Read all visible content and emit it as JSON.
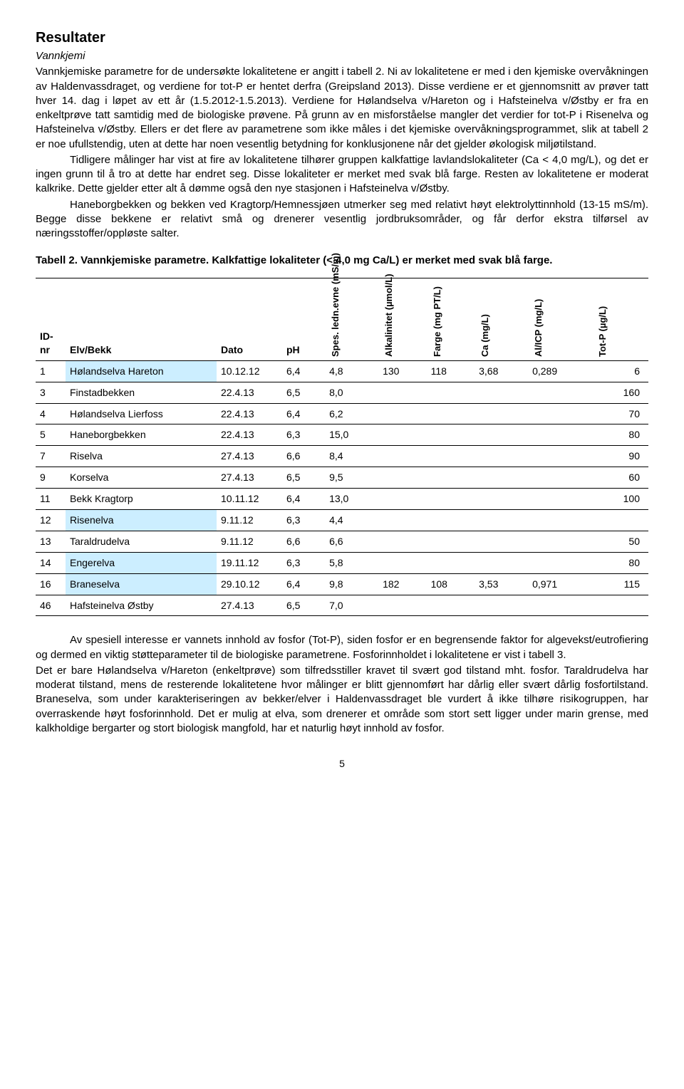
{
  "title": "Resultater",
  "subhead": "Vannkjemi",
  "para1": "Vannkjemiske parametre for de undersøkte lokalitetene er angitt i tabell 2. Ni av lokalitetene er med i den kjemiske overvåkningen av Haldenvassdraget, og verdiene for tot-P er hentet derfra (Greipsland 2013). Disse verdiene er et gjennomsnitt av prøver tatt hver 14. dag i løpet av ett år (1.5.2012-1.5.2013). Verdiene for Hølandselva v/Hareton og i Hafsteinelva v/Østby er fra en enkeltprøve tatt samtidig med de biologiske prøvene. På grunn av en misforståelse mangler det verdier for tot-P i Risenelva og Hafsteinelva v/Østby. Ellers er det flere av parametrene som ikke måles i det kjemiske overvåkningsprogrammet, slik at tabell 2 er noe ufullstendig, uten at dette har noen vesentlig betydning for konklusjonene når det gjelder økologisk miljøtilstand.",
  "para2": "Tidligere målinger har vist at fire av lokalitetene tilhører gruppen kalkfattige lavlandslokaliteter (Ca < 4,0 mg/L), og det er ingen grunn til å tro at dette har endret seg. Disse lokaliteter er merket med svak blå farge. Resten av lokalitetene er moderat kalkrike. Dette gjelder etter alt å dømme også den nye stasjonen i Hafsteinelva v/Østby.",
  "para3": "Haneborgbekken og bekken ved Kragtorp/Hemnessjøen utmerker seg med relativt høyt elektrolyttinnhold (13-15 mS/m). Begge disse bekkene er relativt små og drenerer vesentlig jordbruksområder, og får derfor ekstra tilførsel av næringsstoffer/oppløste salter.",
  "table_title": "Tabell 2. Vannkjemiske parametre. Kalkfattige lokaliteter (< 4,0 mg Ca/L) er merket med svak blå farge.",
  "headers": {
    "id": "ID-nr",
    "name": "Elv/Bekk",
    "date": "Dato",
    "ph": "pH",
    "spes": "Spes. ledn.evne (mS/m)",
    "alk": "Alkalinitet (µmol/L)",
    "farge": "Farge (mg PT/L)",
    "ca": "Ca (mg/L)",
    "al": "Al/ICP (mg/L)",
    "totp": "Tot-P (µg/L)"
  },
  "rows": [
    {
      "id": "1",
      "name": "Hølandselva Hareton",
      "date": "10.12.12",
      "ph": "6,4",
      "spes": "4,8",
      "alk": "130",
      "farge": "118",
      "ca": "3,68",
      "al": "0,289",
      "totp": "6",
      "hl": true
    },
    {
      "id": "3",
      "name": "Finstadbekken",
      "date": "22.4.13",
      "ph": "6,5",
      "spes": "8,0",
      "alk": "",
      "farge": "",
      "ca": "",
      "al": "",
      "totp": "160",
      "hl": false
    },
    {
      "id": "4",
      "name": "Hølandselva Lierfoss",
      "date": "22.4.13",
      "ph": "6,4",
      "spes": "6,2",
      "alk": "",
      "farge": "",
      "ca": "",
      "al": "",
      "totp": "70",
      "hl": false
    },
    {
      "id": "5",
      "name": "Haneborgbekken",
      "date": "22.4.13",
      "ph": "6,3",
      "spes": "15,0",
      "alk": "",
      "farge": "",
      "ca": "",
      "al": "",
      "totp": "80",
      "hl": false
    },
    {
      "id": "7",
      "name": "Riselva",
      "date": "27.4.13",
      "ph": "6,6",
      "spes": "8,4",
      "alk": "",
      "farge": "",
      "ca": "",
      "al": "",
      "totp": "90",
      "hl": false
    },
    {
      "id": "9",
      "name": "Korselva",
      "date": "27.4.13",
      "ph": "6,5",
      "spes": "9,5",
      "alk": "",
      "farge": "",
      "ca": "",
      "al": "",
      "totp": "60",
      "hl": false
    },
    {
      "id": "11",
      "name": "Bekk Kragtorp",
      "date": "10.11.12",
      "ph": "6,4",
      "spes": "13,0",
      "alk": "",
      "farge": "",
      "ca": "",
      "al": "",
      "totp": "100",
      "hl": false
    },
    {
      "id": "12",
      "name": "Risenelva",
      "date": "9.11.12",
      "ph": "6,3",
      "spes": "4,4",
      "alk": "",
      "farge": "",
      "ca": "",
      "al": "",
      "totp": "",
      "hl": true
    },
    {
      "id": "13",
      "name": "Taraldrudelva",
      "date": "9.11.12",
      "ph": "6,6",
      "spes": "6,6",
      "alk": "",
      "farge": "",
      "ca": "",
      "al": "",
      "totp": "50",
      "hl": false
    },
    {
      "id": "14",
      "name": "Engerelva",
      "date": "19.11.12",
      "ph": "6,3",
      "spes": "5,8",
      "alk": "",
      "farge": "",
      "ca": "",
      "al": "",
      "totp": "80",
      "hl": true
    },
    {
      "id": "16",
      "name": "Braneselva",
      "date": "29.10.12",
      "ph": "6,4",
      "spes": "9,8",
      "alk": "182",
      "farge": "108",
      "ca": "3,53",
      "al": "0,971",
      "totp": "115",
      "hl": true
    },
    {
      "id": "46",
      "name": "Hafsteinelva Østby",
      "date": "27.4.13",
      "ph": "6,5",
      "spes": "7,0",
      "alk": "",
      "farge": "",
      "ca": "",
      "al": "",
      "totp": "",
      "hl": false
    }
  ],
  "para4": "Av spesiell interesse er vannets innhold av fosfor (Tot-P), siden fosfor er en begrensende faktor for algevekst/eutrofiering og dermed en viktig støtteparameter til de biologiske parametrene. Fosforinnholdet i lokalitetene er vist i tabell 3.",
  "para5": "Det er bare Hølandselva v/Hareton (enkeltprøve) som tilfredsstiller kravet til svært god tilstand mht. fosfor. Taraldrudelva har moderat tilstand, mens de resterende lokalitetene hvor målinger er blitt gjennomført har dårlig eller svært dårlig fosfortilstand. Braneselva, som under karakteriseringen av bekker/elver i Haldenvassdraget ble vurdert å ikke tilhøre risikogruppen, har overraskende høyt fosforinnhold. Det er mulig at elva, som drenerer et område som stort sett ligger under marin grense, med kalkholdige bergarter og stort biologisk mangfold, har et naturlig høyt innhold av fosfor.",
  "page_num": "5",
  "highlight_color": "#cceeff"
}
